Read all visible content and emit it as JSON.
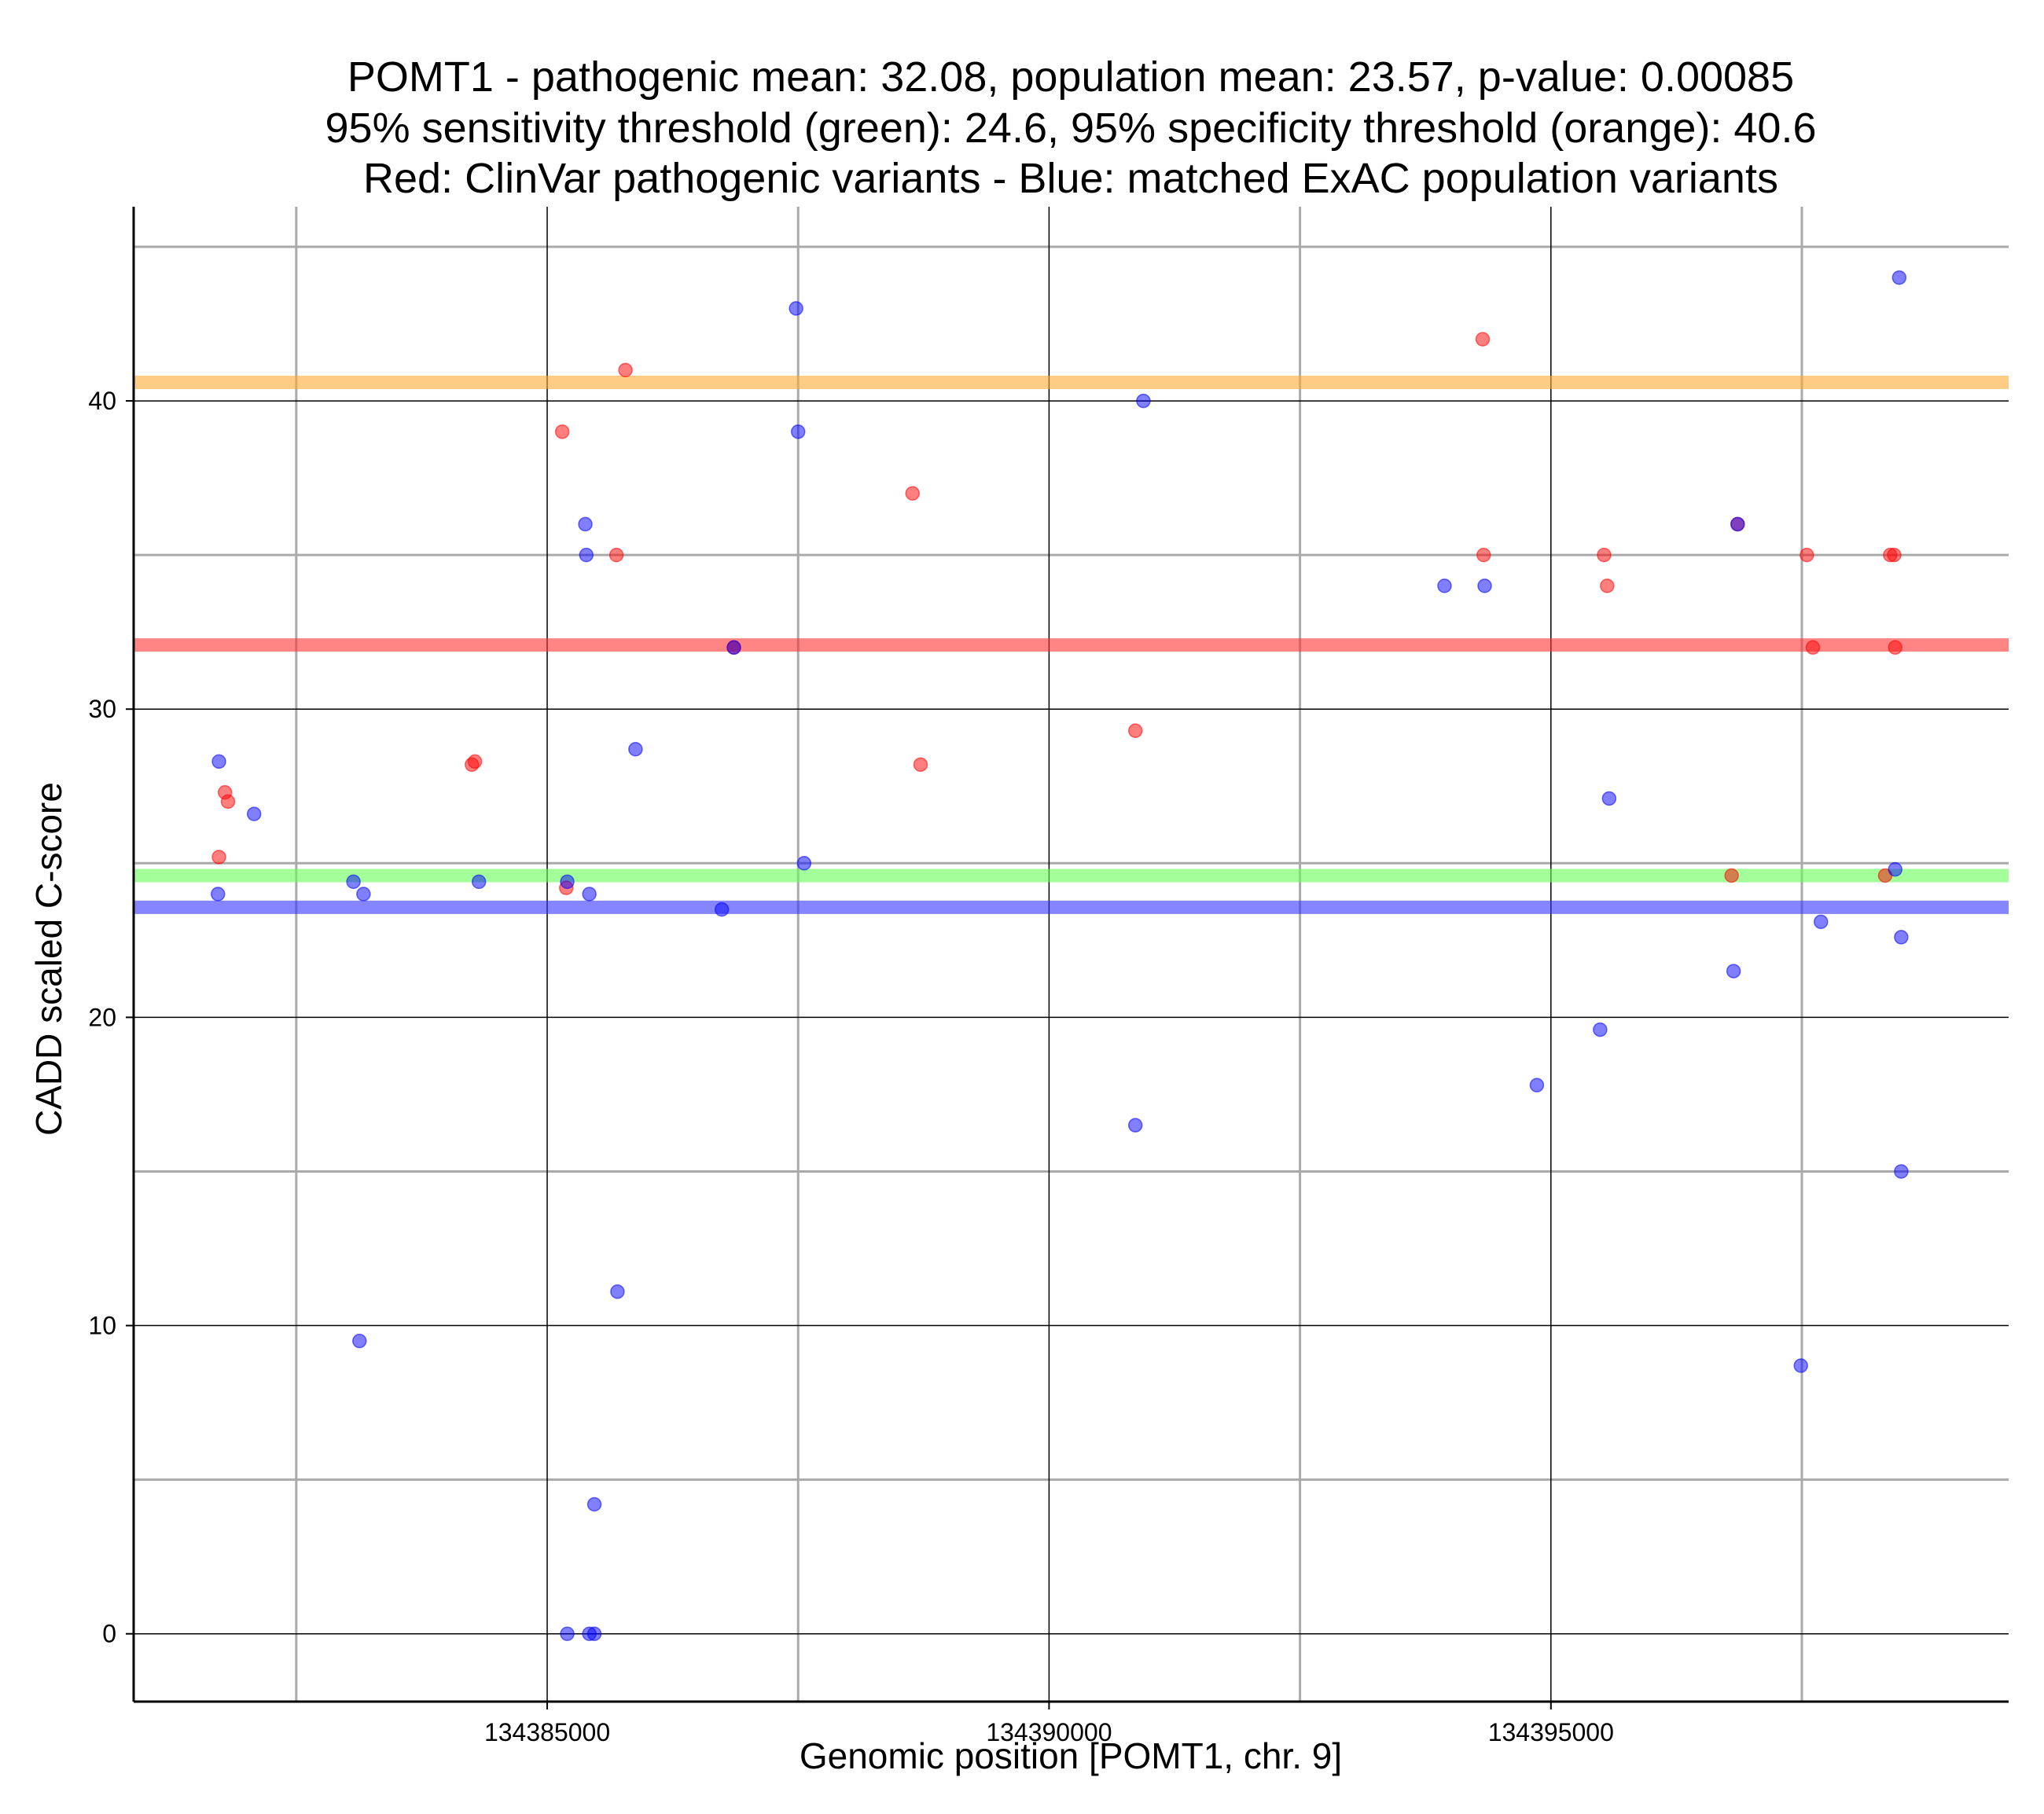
{
  "chart_data": {
    "type": "scatter",
    "title_lines": [
      "POMT1 - pathogenic mean: 32.08, population mean: 23.57, p-value: 0.00085",
      "95% sensitivity threshold (green): 24.6, 95% specificity threshold (orange): 40.6",
      "Red: ClinVar pathogenic variants - Blue: matched ExAC population variants"
    ],
    "xlabel": "Genomic position [POMT1, chr. 9]",
    "ylabel": "CADD scaled C-score",
    "xlim": [
      134380880,
      134399560
    ],
    "ylim": [
      -2.2,
      46.3
    ],
    "x_ticks": [
      {
        "value": 134385000,
        "label": "134385000"
      },
      {
        "value": 134390000,
        "label": "134390000"
      },
      {
        "value": 134395000,
        "label": "134395000"
      }
    ],
    "x_minor_grid": [
      134382500,
      134387500,
      134392500,
      134397500
    ],
    "y_ticks": [
      {
        "value": 0,
        "label": "0"
      },
      {
        "value": 10,
        "label": "10"
      },
      {
        "value": 20,
        "label": "20"
      },
      {
        "value": 30,
        "label": "30"
      },
      {
        "value": 40,
        "label": "40"
      }
    ],
    "y_minor_grid": [
      5,
      15,
      25,
      35,
      45
    ],
    "grid": true,
    "colors": {
      "pathogenic": "#ff0000",
      "population": "#0000ff",
      "sensitivity_line": "#66ff55",
      "specificity_line": "#ffaa33",
      "pathogenic_mean_line": "#ff3333",
      "population_mean_line": "#3333ff",
      "major_grid": "#000000",
      "minor_grid": "#aaaaaa"
    },
    "horizontal_lines": [
      {
        "name": "specificity-threshold",
        "value": 40.6,
        "color": "#ffaa33"
      },
      {
        "name": "pathogenic-mean",
        "value": 32.08,
        "color": "#ff3333"
      },
      {
        "name": "sensitivity-threshold",
        "value": 24.6,
        "color": "#66ff55"
      },
      {
        "name": "population-mean",
        "value": 23.57,
        "color": "#3333ff"
      }
    ],
    "series": [
      {
        "name": "ClinVar pathogenic variants",
        "color": "#ff0000",
        "points": [
          [
            134381730,
            25.2
          ],
          [
            134381790,
            27.3
          ],
          [
            134381820,
            27.0
          ],
          [
            134384250,
            28.2
          ],
          [
            134384280,
            28.3
          ],
          [
            134385150,
            39.0
          ],
          [
            134385190,
            24.2
          ],
          [
            134385690,
            35.0
          ],
          [
            134385780,
            41.0
          ],
          [
            134386860,
            32.0
          ],
          [
            134388640,
            37.0
          ],
          [
            134388720,
            28.2
          ],
          [
            134390860,
            29.3
          ],
          [
            134394320,
            42.0
          ],
          [
            134394330,
            35.0
          ],
          [
            134395530,
            35.0
          ],
          [
            134395560,
            34.0
          ],
          [
            134396800,
            24.6
          ],
          [
            134396860,
            36.0
          ],
          [
            134397550,
            35.0
          ],
          [
            134397610,
            32.0
          ],
          [
            134398330,
            24.6
          ],
          [
            134398380,
            35.0
          ],
          [
            134398420,
            35.0
          ],
          [
            134398430,
            32.0
          ]
        ]
      },
      {
        "name": "matched ExAC population variants",
        "color": "#0000ff",
        "points": [
          [
            134381730,
            28.3
          ],
          [
            134381720,
            24.0
          ],
          [
            134382080,
            26.6
          ],
          [
            134383070,
            24.4
          ],
          [
            134383170,
            24.0
          ],
          [
            134383130,
            9.5
          ],
          [
            134384320,
            24.4
          ],
          [
            134385200,
            24.4
          ],
          [
            134385380,
            36.0
          ],
          [
            134385390,
            35.0
          ],
          [
            134385420,
            24.0
          ],
          [
            134385880,
            28.7
          ],
          [
            134385700,
            11.1
          ],
          [
            134385470,
            4.2
          ],
          [
            134385200,
            0.0
          ],
          [
            134385420,
            0.0
          ],
          [
            134385470,
            0.0
          ],
          [
            134386740,
            23.5
          ],
          [
            134386860,
            32.0
          ],
          [
            134387480,
            43.0
          ],
          [
            134387500,
            39.0
          ],
          [
            134387560,
            25.0
          ],
          [
            134390940,
            40.0
          ],
          [
            134390860,
            16.5
          ],
          [
            134393940,
            34.0
          ],
          [
            134394340,
            34.0
          ],
          [
            134394860,
            17.8
          ],
          [
            134395490,
            19.6
          ],
          [
            134395580,
            27.1
          ],
          [
            134396820,
            21.5
          ],
          [
            134396860,
            36.0
          ],
          [
            134397490,
            8.7
          ],
          [
            134397690,
            23.1
          ],
          [
            134398430,
            24.8
          ],
          [
            134398470,
            44.0
          ],
          [
            134398490,
            22.6
          ],
          [
            134398490,
            15.0
          ]
        ]
      }
    ]
  }
}
